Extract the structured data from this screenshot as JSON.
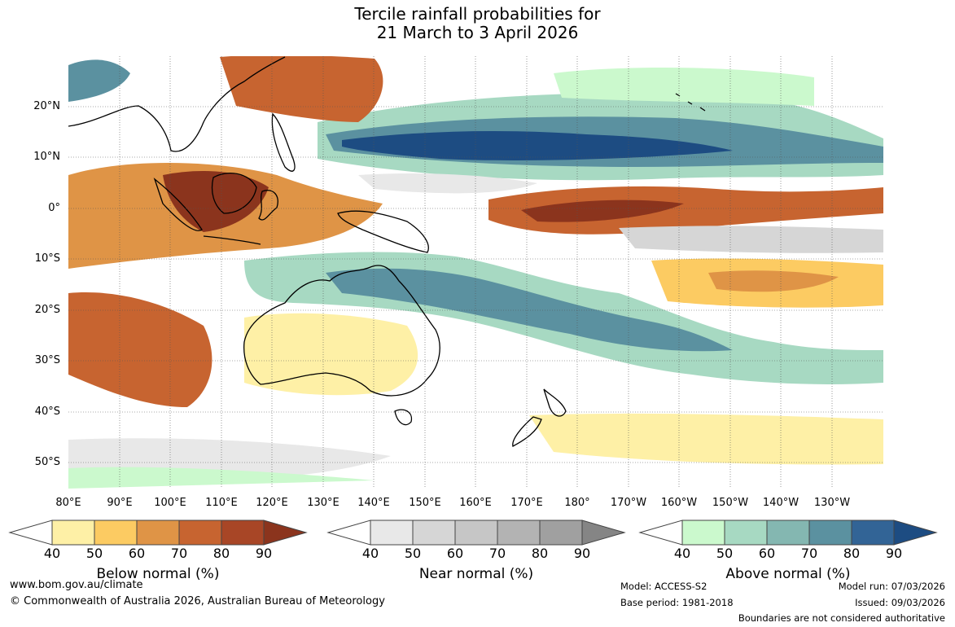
{
  "title": {
    "line1": "Tercile rainfall probabilities for",
    "line2": "21 March to 3 April 2026"
  },
  "latitude_labels": [
    "20°N",
    "10°N",
    "0°",
    "10°S",
    "20°S",
    "30°S",
    "40°S",
    "50°S"
  ],
  "longitude_labels": [
    "80°E",
    "90°E",
    "100°E",
    "110°E",
    "120°E",
    "130°E",
    "140°E",
    "150°E",
    "160°E",
    "170°E",
    "180°",
    "170°W",
    "160°W",
    "150°W",
    "140°W",
    "130°W"
  ],
  "colorbars": [
    {
      "title": "Below normal (%)",
      "ticks": [
        "40",
        "50",
        "60",
        "70",
        "80",
        "90"
      ],
      "colors": [
        "#fef0a6",
        "#fccb62",
        "#df9446",
        "#c76430",
        "#a84626",
        "#8b341d"
      ]
    },
    {
      "title": "Near normal (%)",
      "ticks": [
        "40",
        "50",
        "60",
        "70",
        "80",
        "90"
      ],
      "colors": [
        "#e8e8e8",
        "#d6d6d6",
        "#c6c6c6",
        "#b3b3b3",
        "#a0a0a0",
        "#858585"
      ]
    },
    {
      "title": "Above normal (%)",
      "ticks": [
        "40",
        "50",
        "60",
        "70",
        "80",
        "90"
      ],
      "colors": [
        "#cbf9cd",
        "#a7d9c2",
        "#84b7b1",
        "#5b91a0",
        "#326496",
        "#1d4c82"
      ]
    }
  ],
  "map_colors": {
    "ocean_white": "#ffffff",
    "coastline": "#000000",
    "border": "#999999",
    "grid": "#555555"
  },
  "footer": {
    "website": "www.bom.gov.au/climate",
    "copyright": "© Commonwealth of Australia 2026, Australian Bureau of Meteorology",
    "model": "Model: ACCESS-S2",
    "base_period": "Base period: 1981-2018",
    "model_run": "Model run: 07/03/2026",
    "issued": "Issued: 09/03/2026",
    "disclaimer": "Boundaries are not considered authoritative"
  }
}
